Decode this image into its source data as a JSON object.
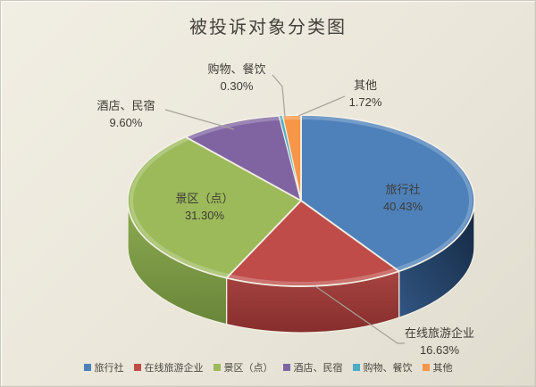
{
  "chart_data": {
    "type": "pie",
    "effect": "3d",
    "title": "被投诉对象分类图",
    "legend_position": "bottom",
    "labels_shown_as": "category name + percentage callouts",
    "slices": [
      {
        "key": "travel-agency",
        "label": "旅行社",
        "pct": "40.43%",
        "value": 40.43,
        "color": "#4E81BA",
        "side": "#30537F",
        "side_dark": "#132740"
      },
      {
        "key": "online-travel",
        "label": "在线旅游企业",
        "pct": "16.63%",
        "value": 16.63,
        "color": "#BF4C48",
        "side": "#A74441",
        "side_dark": "#862E2C"
      },
      {
        "key": "scenic-area",
        "label": "景区（点）",
        "pct": "31.30%",
        "value": 31.3,
        "color": "#9CBA5A",
        "side": "#8DAB51",
        "side_dark": "#69863A"
      },
      {
        "key": "hotel-bnb",
        "label": "酒店、民宿",
        "pct": "9.60%",
        "value": 9.6,
        "color": "#8064A2"
      },
      {
        "key": "shopping-dining",
        "label": "购物、餐饮",
        "pct": "0.30%",
        "value": 0.3,
        "color": "#4BACC6"
      },
      {
        "key": "other",
        "label": "其他",
        "pct": "1.72%",
        "value": 1.72,
        "color": "#F79646"
      }
    ],
    "style": {
      "background": "#EAE6DA",
      "border": "#CCC8BC",
      "text_color": "#3E3C36",
      "leader_color": "#A5A198",
      "slice_border": "#F2EFE4"
    }
  }
}
